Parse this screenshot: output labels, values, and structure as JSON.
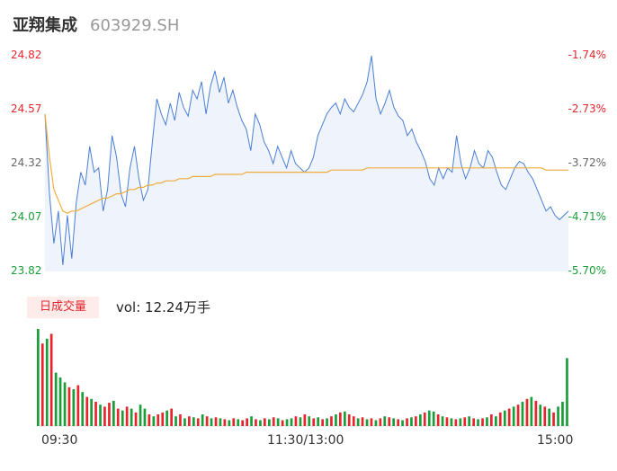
{
  "header": {
    "name": "亚翔集成",
    "code": "603929.SH"
  },
  "price_axis": {
    "left_ticks": [
      "24.82",
      "24.57",
      "24.32",
      "24.07",
      "23.82"
    ],
    "right_ticks": [
      "-1.74%",
      "-2.73%",
      "-3.72%",
      "-4.71%",
      "-5.70%"
    ]
  },
  "volume": {
    "tag": "日成交量",
    "summary": "vol: 12.24万手"
  },
  "time_axis": [
    "09:30",
    "11:30/13:00",
    "15:00"
  ],
  "colors": {
    "price_line": "#4a7fd4",
    "price_fill": "#eef3fc",
    "avg_line": "#f0ad3c",
    "up": "#e5262d",
    "down": "#1b9e3a"
  },
  "chart_data": [
    {
      "type": "line",
      "title": "",
      "ylim": [
        23.82,
        24.82
      ],
      "x_range": [
        "09:30",
        "15:00"
      ],
      "series": [
        {
          "values": [
            24.55,
            24.18,
            23.95,
            24.1,
            23.85,
            24.08,
            23.88,
            24.14,
            24.28,
            24.22,
            24.4,
            24.28,
            24.3,
            24.1,
            24.2,
            24.45,
            24.35,
            24.18,
            24.12,
            24.3,
            24.4,
            24.25,
            24.15,
            24.2,
            24.42,
            24.62,
            24.55,
            24.5,
            24.6,
            24.52,
            24.65,
            24.58,
            24.54,
            24.66,
            24.62,
            24.7,
            24.55,
            24.68,
            24.75,
            24.65,
            24.72,
            24.6,
            24.66,
            24.58,
            24.52,
            24.48,
            24.38,
            24.55,
            24.5,
            24.42,
            24.38,
            24.32,
            24.4,
            24.35,
            24.3,
            24.38,
            24.32,
            24.3,
            24.28,
            24.3,
            24.35,
            24.45,
            24.5,
            24.55,
            24.58,
            24.6,
            24.55,
            24.62,
            24.58,
            24.56,
            24.6,
            24.64,
            24.7,
            24.82,
            24.62,
            24.55,
            24.6,
            24.66,
            24.58,
            24.54,
            24.52,
            24.45,
            24.48,
            24.42,
            24.38,
            24.33,
            24.25,
            24.22,
            24.3,
            24.25,
            24.3,
            24.28,
            24.45,
            24.32,
            24.25,
            24.3,
            24.38,
            24.32,
            24.3,
            24.38,
            24.35,
            24.28,
            24.22,
            24.2,
            24.25,
            24.3,
            24.33,
            24.32,
            24.28,
            24.25,
            24.2,
            24.15,
            24.1,
            24.12,
            24.08,
            24.06,
            24.08,
            24.1
          ],
          "avg_pct": [
            24.55,
            24.35,
            24.2,
            24.15,
            24.1,
            24.09,
            24.1,
            24.1,
            24.11,
            24.12,
            24.13,
            24.14,
            24.15,
            24.16,
            24.16,
            24.17,
            24.18,
            24.18,
            24.19,
            24.2,
            24.2,
            24.21,
            24.21,
            24.22,
            24.22,
            24.23,
            24.23,
            24.24,
            24.24,
            24.24,
            24.25,
            24.25,
            24.25,
            24.26,
            24.26,
            24.26,
            24.26,
            24.26,
            24.27,
            24.27,
            24.27,
            24.27,
            24.27,
            24.27,
            24.27,
            24.28,
            24.28,
            24.28,
            24.28,
            24.28,
            24.28,
            24.28,
            24.28,
            24.28,
            24.28,
            24.28,
            24.28,
            24.28,
            24.28,
            24.28,
            24.28,
            24.28,
            24.28,
            24.28,
            24.29,
            24.29,
            24.29,
            24.29,
            24.29,
            24.29,
            24.29,
            24.29,
            24.3,
            24.3,
            24.3,
            24.3,
            24.3,
            24.3,
            24.3,
            24.3,
            24.3,
            24.3,
            24.3,
            24.3,
            24.3,
            24.3,
            24.3,
            24.3,
            24.3,
            24.3,
            24.3,
            24.3,
            24.3,
            24.3,
            24.3,
            24.3,
            24.3,
            24.3,
            24.3,
            24.3,
            24.3,
            24.3,
            24.3,
            24.3,
            24.3,
            24.3,
            24.3,
            24.3,
            24.3,
            24.3,
            24.3,
            24.3,
            24.29,
            24.29,
            24.29,
            24.29,
            24.29,
            24.29
          ]
        }
      ]
    },
    {
      "type": "bar",
      "title": "",
      "series": [
        {
          "values": [
            100,
            85,
            90,
            95,
            55,
            50,
            45,
            40,
            38,
            42,
            35,
            30,
            28,
            25,
            22,
            20,
            24,
            26,
            18,
            16,
            20,
            18,
            14,
            22,
            18,
            12,
            10,
            12,
            14,
            16,
            18,
            10,
            12,
            8,
            10,
            9,
            8,
            12,
            10,
            8,
            9,
            8,
            7,
            6,
            8,
            7,
            6,
            8,
            10,
            7,
            6,
            8,
            7,
            9,
            8,
            6,
            7,
            8,
            10,
            9,
            12,
            10,
            8,
            9,
            7,
            8,
            10,
            12,
            14,
            15,
            12,
            10,
            8,
            9,
            7,
            8,
            6,
            8,
            10,
            9,
            8,
            7,
            6,
            8,
            9,
            10,
            12,
            14,
            16,
            15,
            12,
            10,
            9,
            8,
            7,
            8,
            9,
            10,
            8,
            7,
            8,
            9,
            12,
            10,
            14,
            16,
            18,
            20,
            22,
            25,
            28,
            30,
            26,
            22,
            20,
            18,
            14,
            20,
            25,
            70
          ],
          "direction": [
            "down",
            "up",
            "down",
            "up",
            "down",
            "down",
            "down",
            "up",
            "down",
            "up",
            "down",
            "up",
            "down",
            "up",
            "down",
            "up",
            "up",
            "down",
            "up",
            "down",
            "up",
            "down",
            "up",
            "down",
            "down",
            "up",
            "down",
            "up",
            "up",
            "down",
            "up",
            "down",
            "up",
            "down",
            "up",
            "down",
            "up",
            "down",
            "up",
            "down",
            "up",
            "down",
            "up",
            "down",
            "up",
            "down",
            "up",
            "up",
            "down",
            "up",
            "down",
            "up",
            "down",
            "up",
            "down",
            "up",
            "down",
            "down",
            "up",
            "down",
            "up",
            "down",
            "up",
            "down",
            "up",
            "down",
            "up",
            "down",
            "up",
            "down",
            "up",
            "up",
            "down",
            "up",
            "down",
            "up",
            "down",
            "up",
            "down",
            "up",
            "down",
            "up",
            "down",
            "up",
            "down",
            "up",
            "down",
            "up",
            "down",
            "down",
            "up",
            "down",
            "up",
            "down",
            "up",
            "down",
            "up",
            "down",
            "up",
            "down",
            "up",
            "down",
            "up",
            "down",
            "up",
            "down",
            "up",
            "down",
            "up",
            "down",
            "up",
            "down",
            "up",
            "down",
            "up",
            "down",
            "up",
            "down",
            "down"
          ]
        }
      ]
    }
  ]
}
